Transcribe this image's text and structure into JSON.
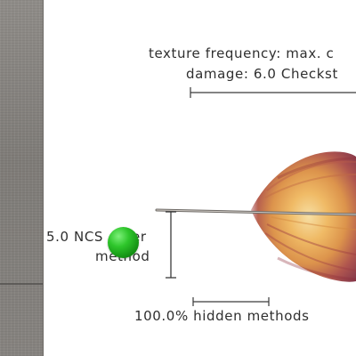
{
  "labels": {
    "texture_frequency": "texture frequency: max. c",
    "damage": "damage: 6.0 Checkst",
    "ncs_prefix": "5.0 NCS",
    "ncs_suffix": "er",
    "method": "method",
    "hidden_methods": "100.0% hidden methods"
  },
  "colors": {
    "marker": "#2ec62b",
    "text": "#2f2f2f",
    "feather_warm": "#e7a640",
    "feather_deep": "#8e2f3a",
    "left_panel": "#85827e"
  },
  "icons": {
    "marker": "green-sphere",
    "feather": "feather-glyph"
  }
}
